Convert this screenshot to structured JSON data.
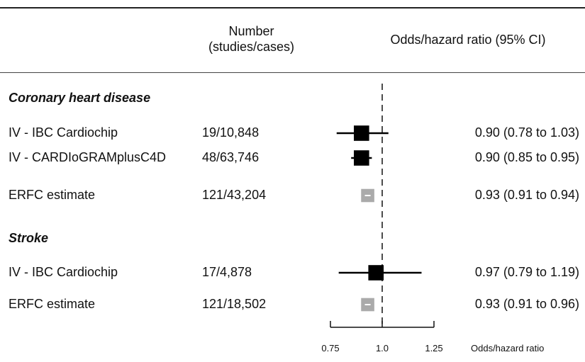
{
  "header": {
    "number_line1": "Number",
    "number_line2": "(studies/cases)",
    "ratio": "Odds/hazard ratio (95% CI)"
  },
  "chart_data": {
    "type": "forest",
    "xlabel": "Odds/hazard ratio",
    "xlim": [
      0.75,
      1.25
    ],
    "xticks": [
      "0.75",
      "1.0",
      "1.25"
    ],
    "reference_line": 1.0,
    "colors": {
      "iv": "#000000",
      "erfc": "#aaaaaa"
    },
    "sections": [
      {
        "title": "Coronary heart disease",
        "rows": [
          {
            "label": "IV - IBC Cardiochip",
            "number": "19/10,848",
            "estimate_text": "0.90 (0.78 to 1.03)",
            "point": 0.9,
            "lower": 0.78,
            "upper": 1.03,
            "kind": "iv",
            "weight": 0.8
          },
          {
            "label": "IV - CARDIoGRAMplusC4D",
            "number": "48/63,746",
            "estimate_text": "0.90 (0.85 to 0.95)",
            "point": 0.9,
            "lower": 0.85,
            "upper": 0.95,
            "kind": "iv",
            "weight": 0.8
          },
          {
            "label": "ERFC estimate",
            "number": "121/43,204",
            "estimate_text": "0.93 (0.91 to 0.94)",
            "point": 0.93,
            "lower": 0.91,
            "upper": 0.94,
            "kind": "erfc",
            "weight": 0.7
          }
        ]
      },
      {
        "title": "Stroke",
        "rows": [
          {
            "label": "IV - IBC Cardiochip",
            "number": "17/4,878",
            "estimate_text": "0.97 (0.79 to 1.19)",
            "point": 0.97,
            "lower": 0.79,
            "upper": 1.19,
            "kind": "iv",
            "weight": 0.8
          },
          {
            "label": "ERFC estimate",
            "number": "121/18,502",
            "estimate_text": "0.93 (0.91 to 0.96)",
            "point": 0.93,
            "lower": 0.91,
            "upper": 0.96,
            "kind": "erfc",
            "weight": 0.7
          }
        ]
      }
    ]
  }
}
